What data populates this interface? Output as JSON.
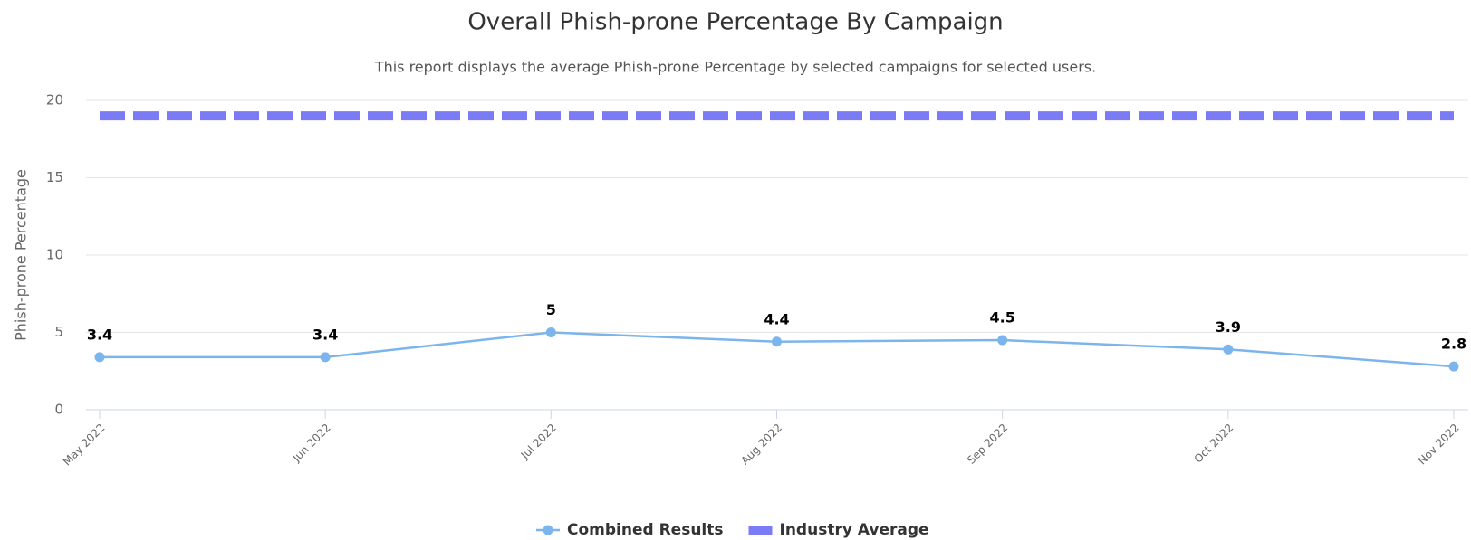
{
  "chart_data": {
    "type": "line",
    "title": "Overall Phish-prone Percentage By Campaign",
    "subtitle": "This report displays the average Phish-prone Percentage by selected campaigns for selected users.",
    "y_label": "Phish-prone Percentage",
    "categories": [
      "May 2022",
      "Jun 2022",
      "Jul 2022",
      "Aug 2022",
      "Sep 2022",
      "Oct 2022",
      "Nov 2022"
    ],
    "series": [
      {
        "name": "Combined Results",
        "color": "#7cb5ec",
        "values": [
          3.4,
          3.4,
          5,
          4.4,
          4.5,
          3.9,
          2.8
        ],
        "data_labels": true
      },
      {
        "name": "Industry Average",
        "color": "#7b7cf5",
        "values": [
          19,
          19,
          19,
          19,
          19,
          19,
          19
        ],
        "dashed": true
      }
    ],
    "ylim": [
      0,
      20
    ],
    "yticks": [
      0,
      5,
      10,
      15,
      20
    ],
    "grid": true,
    "legend": "bottom"
  }
}
